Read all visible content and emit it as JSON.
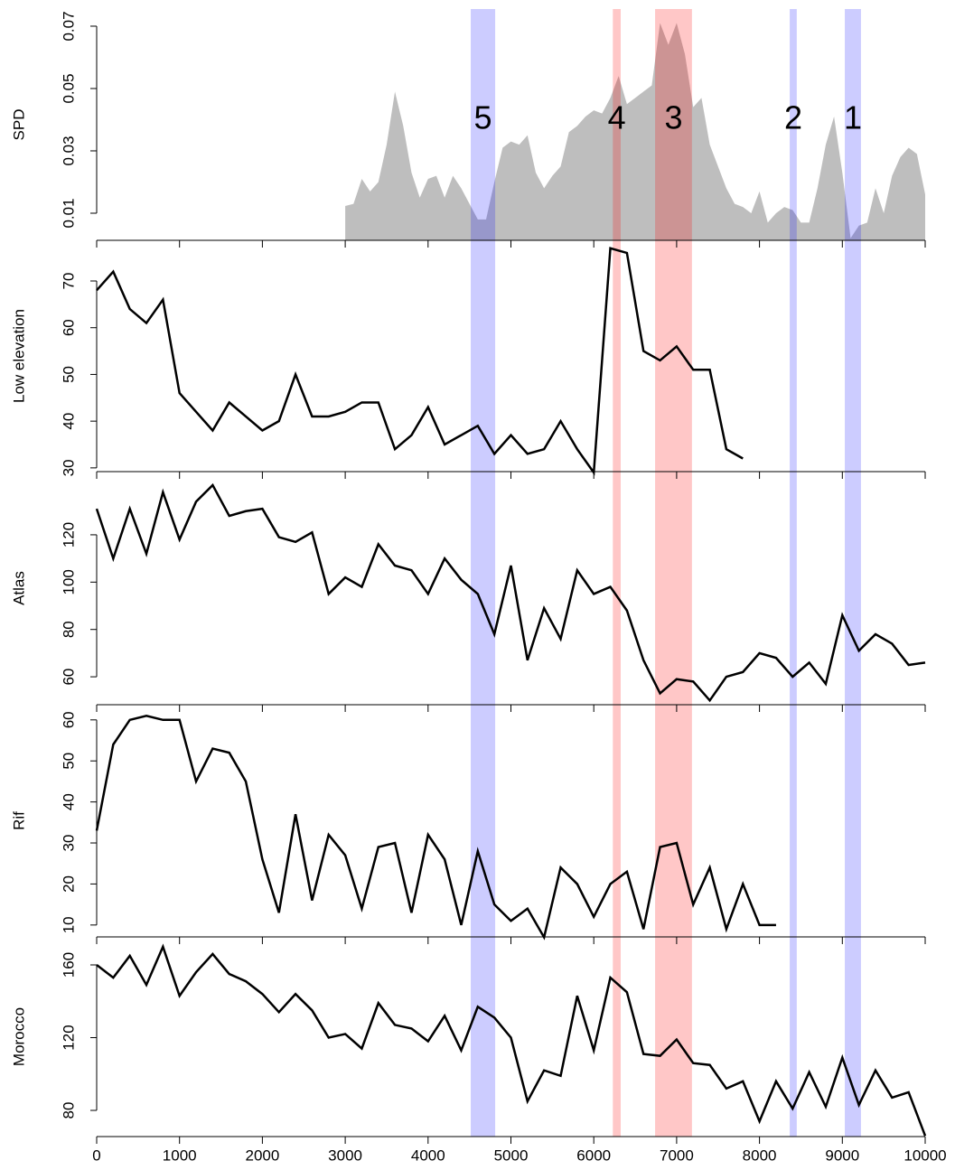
{
  "chart_data": [
    {
      "type": "area",
      "ylabel": "SPD",
      "color": "#bebebe",
      "x": [
        3000,
        3100,
        3200,
        3300,
        3400,
        3500,
        3600,
        3700,
        3800,
        3900,
        4000,
        4100,
        4200,
        4300,
        4400,
        4500,
        4600,
        4700,
        4800,
        4900,
        5000,
        5100,
        5200,
        5300,
        5400,
        5500,
        5600,
        5700,
        5800,
        5900,
        6000,
        6100,
        6200,
        6300,
        6400,
        6500,
        6600,
        6700,
        6800,
        6900,
        7000,
        7100,
        7200,
        7300,
        7400,
        7500,
        7600,
        7700,
        7800,
        7900,
        8000,
        8100,
        8200,
        8300,
        8400,
        8500,
        8600,
        8700,
        8800,
        8900,
        9000,
        9100,
        9200,
        9300,
        9400,
        9500,
        9600,
        9700,
        9800,
        9900,
        10000
      ],
      "values": [
        0.0123,
        0.013,
        0.021,
        0.017,
        0.02,
        0.032,
        0.049,
        0.038,
        0.023,
        0.015,
        0.021,
        0.022,
        0.015,
        0.022,
        0.018,
        0.013,
        0.008,
        0.008,
        0.02,
        0.031,
        0.033,
        0.032,
        0.035,
        0.023,
        0.018,
        0.022,
        0.025,
        0.036,
        0.038,
        0.041,
        0.043,
        0.042,
        0.047,
        0.054,
        0.045,
        0.047,
        0.049,
        0.051,
        0.071,
        0.064,
        0.071,
        0.061,
        0.044,
        0.047,
        0.032,
        0.025,
        0.018,
        0.013,
        0.012,
        0.01,
        0.017,
        0.007,
        0.01,
        0.012,
        0.011,
        0.007,
        0.007,
        0.018,
        0.032,
        0.041,
        0.023,
        0.002,
        0.006,
        0.007,
        0.018,
        0.01,
        0.022,
        0.028,
        0.031,
        0.029,
        0.016
      ],
      "ylim": [
        0.0013,
        0.0755
      ],
      "yticks": [
        0.01,
        0.03,
        0.05,
        0.07
      ],
      "highlights": [
        {
          "label": "5",
          "start": 4515,
          "end": 4810,
          "color": "#0000ff"
        },
        {
          "label": "4",
          "start": 6230,
          "end": 6325,
          "color": "#ff0000"
        },
        {
          "label": "3",
          "start": 6740,
          "end": 7185,
          "color": "#ff0000"
        },
        {
          "label": "2",
          "start": 8365,
          "end": 8450,
          "color": "#0000ff"
        },
        {
          "label": "1",
          "start": 9030,
          "end": 9225,
          "color": "#0000ff"
        }
      ]
    },
    {
      "type": "line",
      "ylabel": "Low elevation",
      "color": "#000000",
      "x": [
        0,
        200,
        400,
        600,
        800,
        1000,
        1200,
        1400,
        1600,
        1800,
        2000,
        2200,
        2400,
        2600,
        2800,
        3000,
        3200,
        3400,
        3600,
        3800,
        4000,
        4200,
        4400,
        4600,
        4800,
        5000,
        5200,
        5400,
        5600,
        5800,
        6000,
        6200,
        6400,
        6600,
        6800,
        7000,
        7200,
        7400,
        7600,
        7800
      ],
      "values": [
        68,
        72,
        64,
        61,
        66,
        46,
        42,
        38,
        44,
        41,
        38,
        40,
        50,
        41,
        41,
        42,
        44,
        44,
        34,
        37,
        43,
        35,
        37,
        39,
        33,
        37,
        33,
        34,
        40,
        34,
        29,
        77,
        76,
        55,
        53,
        56,
        51,
        51,
        34,
        32
      ],
      "ylim": [
        29.2,
        78.7
      ],
      "yticks": [
        30,
        40,
        50,
        60,
        70
      ]
    },
    {
      "type": "line",
      "ylabel": "Atlas",
      "color": "#000000",
      "x": [
        0,
        200,
        400,
        600,
        800,
        1000,
        1200,
        1400,
        1600,
        1800,
        2000,
        2200,
        2400,
        2600,
        2800,
        3000,
        3200,
        3400,
        3600,
        3800,
        4000,
        4200,
        4400,
        4600,
        4800,
        5000,
        5200,
        5400,
        5600,
        5800,
        6000,
        6200,
        6400,
        6600,
        6800,
        7000,
        7200,
        7400,
        7600,
        7800,
        8000,
        8200,
        8400,
        8600,
        8800,
        9000,
        9200,
        9400,
        9600,
        9800,
        10000
      ],
      "values": [
        131,
        110,
        131,
        112,
        138,
        118,
        134,
        141,
        128,
        130,
        131,
        119,
        117,
        121,
        95,
        102,
        98,
        116,
        107,
        105,
        95,
        110,
        101,
        95,
        78,
        107,
        67,
        89,
        76,
        105,
        95,
        98,
        88,
        67,
        53,
        59,
        58,
        50,
        60,
        62,
        70,
        68,
        60,
        66,
        57,
        86,
        71,
        78,
        74,
        65,
        66
      ],
      "ylim": [
        48.2,
        146.7
      ],
      "yticks": [
        60,
        80,
        100,
        120
      ]
    },
    {
      "type": "line",
      "ylabel": "Rif",
      "color": "#000000",
      "x": [
        0,
        200,
        400,
        600,
        800,
        1000,
        1200,
        1400,
        1600,
        1800,
        2000,
        2200,
        2400,
        2600,
        2800,
        3000,
        3200,
        3400,
        3600,
        3800,
        4000,
        4200,
        4400,
        4600,
        4800,
        5000,
        5200,
        5400,
        5600,
        5800,
        6000,
        6200,
        6400,
        6600,
        6800,
        7000,
        7200,
        7400,
        7600,
        7800,
        8000,
        8200
      ],
      "values": [
        33,
        54,
        60,
        61,
        60,
        60,
        45,
        53,
        52,
        45,
        26,
        13,
        37,
        16,
        32,
        27,
        14,
        29,
        30,
        13,
        32,
        26,
        10,
        28,
        15,
        11,
        14,
        7,
        24,
        20,
        12,
        20,
        23,
        9,
        29,
        30,
        15,
        24,
        9,
        20,
        10,
        10
      ],
      "ylim": [
        7.1,
        63.7
      ],
      "yticks": [
        10,
        20,
        30,
        40,
        50,
        60
      ]
    },
    {
      "type": "line",
      "ylabel": "Morocco",
      "color": "#000000",
      "x": [
        0,
        200,
        400,
        600,
        800,
        1000,
        1200,
        1400,
        1600,
        1800,
        2000,
        2200,
        2400,
        2600,
        2800,
        3000,
        3200,
        3400,
        3600,
        3800,
        4000,
        4200,
        4400,
        4600,
        4800,
        5000,
        5200,
        5400,
        5600,
        5800,
        6000,
        6200,
        6400,
        6600,
        6800,
        7000,
        7200,
        7400,
        7600,
        7800,
        8000,
        8200,
        8400,
        8600,
        8800,
        9000,
        9200,
        9400,
        9600,
        9800,
        10000
      ],
      "values": [
        160,
        153,
        165,
        149,
        170,
        143,
        156,
        166,
        155,
        151,
        144,
        134,
        144,
        135,
        120,
        122,
        114,
        139,
        127,
        125,
        118,
        132,
        113,
        137,
        131,
        120,
        85,
        102,
        99,
        143,
        113,
        153,
        145,
        111,
        110,
        119,
        106,
        105,
        92,
        96,
        74,
        96,
        81,
        101,
        82,
        109,
        83,
        102,
        87,
        90,
        66
      ],
      "ylim": [
        65.6,
        175.4
      ],
      "yticks": [
        80,
        120,
        160
      ],
      "xlim": [
        0,
        10000
      ],
      "xticks": [
        0,
        1000,
        2000,
        3000,
        4000,
        5000,
        6000,
        7000,
        8000,
        9000,
        10000
      ]
    }
  ]
}
